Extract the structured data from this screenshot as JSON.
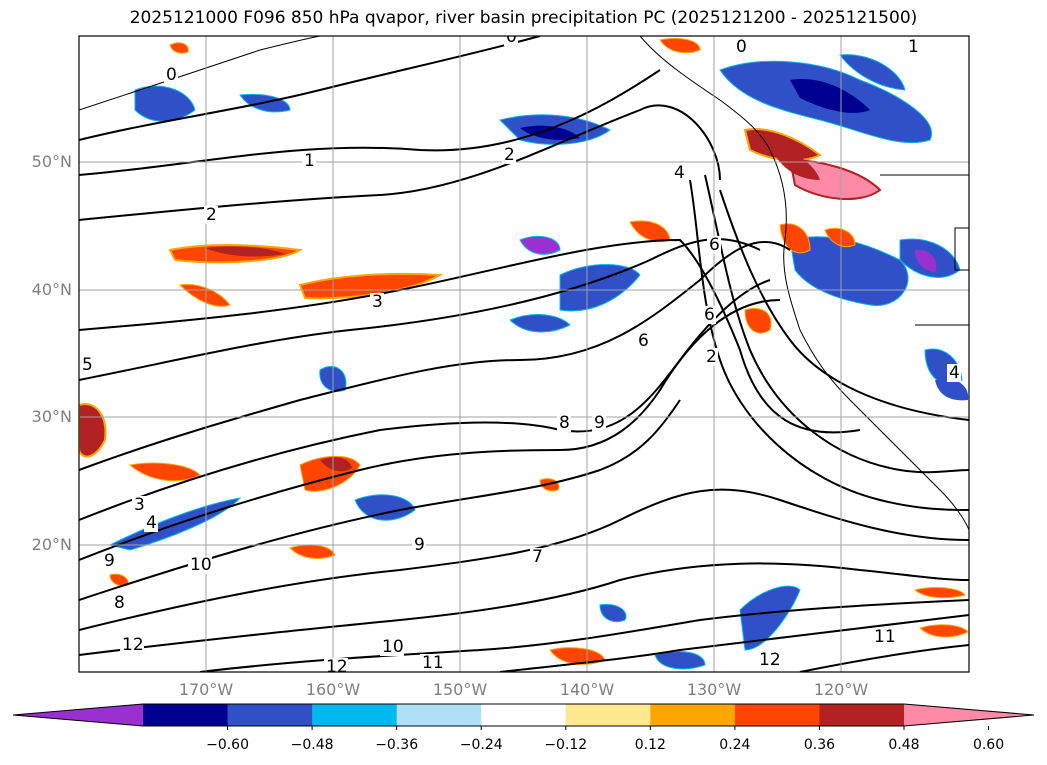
{
  "title": "2025121000 F096 850 hPa qvapor, river basin precipitation PC (2025121200 - 2025121500)",
  "lat_labels": [
    "50°N",
    "40°N",
    "30°N",
    "20°N"
  ],
  "lon_labels": [
    "170°W",
    "160°W",
    "150°W",
    "140°W",
    "130°W",
    "120°W"
  ],
  "colorbar": {
    "ticks": [
      "−0.60",
      "−0.48",
      "−0.36",
      "−0.24",
      "−0.12",
      "0.12",
      "0.24",
      "0.36",
      "0.48",
      "0.60"
    ],
    "colors": [
      "#9b30d0",
      "#000090",
      "#3050c8",
      "#00b8f0",
      "#b0e0f8",
      "#ffffff",
      "#ffe890",
      "#ffa500",
      "#ff4500",
      "#b22222",
      "#ff8aa8"
    ]
  },
  "contour_labels": [
    "0",
    "0",
    "0",
    "1",
    "1",
    "2",
    "2",
    "2",
    "3",
    "3",
    "4",
    "4",
    "4",
    "5",
    "6",
    "6",
    "6",
    "7",
    "8",
    "8",
    "9",
    "9",
    "9",
    "10",
    "10",
    "11",
    "11",
    "12",
    "12",
    "12"
  ],
  "colors": {
    "grid": "#a0a0a0",
    "contour": "#000000",
    "coast": "#000000"
  }
}
